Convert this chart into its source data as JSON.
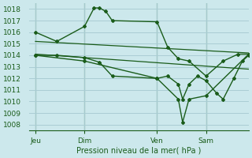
{
  "background_color": "#cce8ec",
  "grid_color": "#aacdd4",
  "line_color": "#1a5c1a",
  "title": "Pression niveau de la mer( hPa )",
  "xlabel_ticks": [
    "Jeu",
    "Dim",
    "Ven",
    "Sam"
  ],
  "xlabel_tick_positions": [
    0.0,
    0.23,
    0.57,
    0.8
  ],
  "ylim": [
    1007.5,
    1018.5
  ],
  "yticks": [
    1008,
    1009,
    1010,
    1011,
    1012,
    1013,
    1014,
    1015,
    1016,
    1017,
    1018
  ],
  "xlim": [
    -0.03,
    1.0
  ],
  "series": [
    {
      "x": [
        0.0,
        0.1,
        0.23,
        0.275,
        0.3,
        0.33,
        0.36,
        0.57,
        0.62,
        0.67,
        0.72,
        0.8,
        0.88,
        0.95,
        1.0
      ],
      "y": [
        1016.0,
        1015.2,
        1016.5,
        1018.1,
        1018.1,
        1017.8,
        1017.0,
        1016.9,
        1014.7,
        1013.7,
        1013.5,
        1012.2,
        1013.5,
        1014.1,
        1014.1
      ]
    },
    {
      "x": [
        0.0,
        1.0
      ],
      "y": [
        1015.2,
        1014.2
      ]
    },
    {
      "x": [
        0.0,
        1.0
      ],
      "y": [
        1014.1,
        1012.8
      ]
    },
    {
      "x": [
        0.0,
        0.1,
        0.23,
        0.3,
        0.36,
        0.57,
        0.62,
        0.67,
        0.69,
        0.72,
        0.76,
        0.8,
        0.85,
        0.88,
        0.93,
        0.97,
        1.0
      ],
      "y": [
        1014.0,
        1014.0,
        1013.8,
        1013.4,
        1012.2,
        1012.0,
        1012.2,
        1011.5,
        1010.2,
        1011.5,
        1012.2,
        1011.8,
        1010.7,
        1010.2,
        1012.0,
        1013.5,
        1014.0
      ]
    },
    {
      "x": [
        0.0,
        0.23,
        0.57,
        0.67,
        0.69,
        0.72,
        0.8,
        1.0
      ],
      "y": [
        1014.0,
        1013.5,
        1012.0,
        1010.2,
        1008.2,
        1010.2,
        1010.5,
        1014.1
      ]
    }
  ],
  "marker_series": [
    0,
    3,
    4
  ],
  "no_marker_series": [
    1,
    2
  ]
}
